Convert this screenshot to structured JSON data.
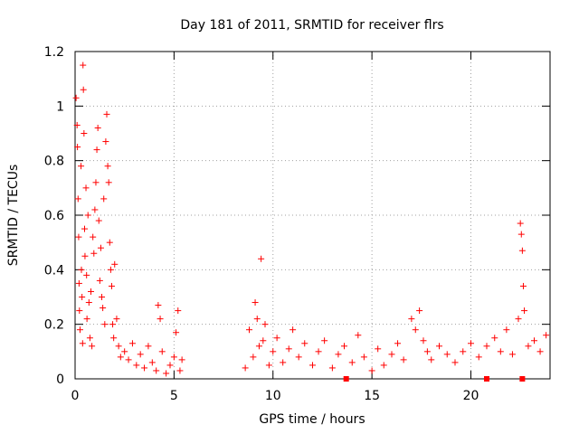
{
  "chart_data": {
    "type": "scatter",
    "title": "Day 181 of 2011, SRMTID for receiver flrs",
    "xlabel": "GPS time / hours",
    "ylabel": "SRMTID / TECUs",
    "xlim": [
      0,
      24
    ],
    "ylim": [
      0,
      1.2
    ],
    "x_ticks": [
      0,
      5,
      10,
      15,
      20
    ],
    "x_tick_labels": [
      "0",
      "5",
      "10",
      "15",
      "20"
    ],
    "y_ticks": [
      0,
      0.2,
      0.4,
      0.6,
      0.8,
      1,
      1.2
    ],
    "y_tick_labels": [
      "0",
      "0.2",
      "0.4",
      "0.6",
      "0.8",
      "1",
      "1.2"
    ],
    "grid": true,
    "marker": "+",
    "color": "#ff0000",
    "series": [
      {
        "name": "SRMTID",
        "points": [
          [
            0.05,
            1.03
          ],
          [
            0.1,
            0.93
          ],
          [
            0.12,
            0.85
          ],
          [
            0.15,
            0.66
          ],
          [
            0.18,
            0.52
          ],
          [
            0.2,
            0.35
          ],
          [
            0.22,
            0.25
          ],
          [
            0.25,
            0.18
          ],
          [
            0.3,
            0.78
          ],
          [
            0.32,
            0.4
          ],
          [
            0.35,
            0.3
          ],
          [
            0.38,
            0.13
          ],
          [
            0.4,
            1.15
          ],
          [
            0.42,
            1.06
          ],
          [
            0.45,
            0.9
          ],
          [
            0.48,
            0.55
          ],
          [
            0.5,
            0.45
          ],
          [
            0.55,
            0.7
          ],
          [
            0.58,
            0.38
          ],
          [
            0.6,
            0.22
          ],
          [
            0.65,
            0.6
          ],
          [
            0.7,
            0.28
          ],
          [
            0.75,
            0.15
          ],
          [
            0.8,
            0.32
          ],
          [
            0.85,
            0.12
          ],
          [
            0.9,
            0.52
          ],
          [
            0.95,
            0.46
          ],
          [
            1.0,
            0.62
          ],
          [
            1.05,
            0.72
          ],
          [
            1.1,
            0.84
          ],
          [
            1.15,
            0.92
          ],
          [
            1.2,
            0.58
          ],
          [
            1.25,
            0.36
          ],
          [
            1.3,
            0.48
          ],
          [
            1.35,
            0.3
          ],
          [
            1.4,
            0.26
          ],
          [
            1.45,
            0.66
          ],
          [
            1.5,
            0.2
          ],
          [
            1.55,
            0.87
          ],
          [
            1.6,
            0.97
          ],
          [
            1.65,
            0.78
          ],
          [
            1.7,
            0.72
          ],
          [
            1.75,
            0.5
          ],
          [
            1.8,
            0.4
          ],
          [
            1.85,
            0.34
          ],
          [
            1.9,
            0.2
          ],
          [
            1.95,
            0.15
          ],
          [
            2.0,
            0.42
          ],
          [
            2.1,
            0.22
          ],
          [
            2.2,
            0.12
          ],
          [
            2.3,
            0.08
          ],
          [
            2.5,
            0.1
          ],
          [
            2.7,
            0.07
          ],
          [
            2.9,
            0.13
          ],
          [
            3.1,
            0.05
          ],
          [
            3.3,
            0.09
          ],
          [
            3.5,
            0.04
          ],
          [
            3.7,
            0.12
          ],
          [
            3.9,
            0.06
          ],
          [
            4.1,
            0.03
          ],
          [
            4.2,
            0.27
          ],
          [
            4.3,
            0.22
          ],
          [
            4.4,
            0.1
          ],
          [
            4.6,
            0.02
          ],
          [
            4.8,
            0.05
          ],
          [
            5.0,
            0.08
          ],
          [
            5.1,
            0.17
          ],
          [
            5.2,
            0.25
          ],
          [
            5.3,
            0.03
          ],
          [
            5.4,
            0.07
          ],
          [
            8.6,
            0.04
          ],
          [
            8.8,
            0.18
          ],
          [
            9.0,
            0.08
          ],
          [
            9.1,
            0.28
          ],
          [
            9.2,
            0.22
          ],
          [
            9.3,
            0.12
          ],
          [
            9.4,
            0.44
          ],
          [
            9.5,
            0.14
          ],
          [
            9.6,
            0.2
          ],
          [
            9.8,
            0.05
          ],
          [
            10.0,
            0.1
          ],
          [
            10.2,
            0.15
          ],
          [
            10.5,
            0.06
          ],
          [
            10.8,
            0.11
          ],
          [
            11.0,
            0.18
          ],
          [
            11.3,
            0.08
          ],
          [
            11.6,
            0.13
          ],
          [
            12.0,
            0.05
          ],
          [
            12.3,
            0.1
          ],
          [
            12.6,
            0.14
          ],
          [
            13.0,
            0.04
          ],
          [
            13.3,
            0.09
          ],
          [
            13.6,
            0.12
          ],
          [
            14.0,
            0.06
          ],
          [
            14.3,
            0.16
          ],
          [
            14.6,
            0.08
          ],
          [
            15.0,
            0.03
          ],
          [
            15.3,
            0.11
          ],
          [
            15.6,
            0.05
          ],
          [
            16.0,
            0.09
          ],
          [
            16.3,
            0.13
          ],
          [
            16.6,
            0.07
          ],
          [
            17.0,
            0.22
          ],
          [
            17.2,
            0.18
          ],
          [
            17.4,
            0.25
          ],
          [
            17.6,
            0.14
          ],
          [
            17.8,
            0.1
          ],
          [
            18.0,
            0.07
          ],
          [
            18.4,
            0.12
          ],
          [
            18.8,
            0.09
          ],
          [
            19.2,
            0.06
          ],
          [
            19.6,
            0.1
          ],
          [
            20.0,
            0.13
          ],
          [
            20.4,
            0.08
          ],
          [
            20.8,
            0.12
          ],
          [
            21.2,
            0.15
          ],
          [
            21.5,
            0.1
          ],
          [
            21.8,
            0.18
          ],
          [
            22.1,
            0.09
          ],
          [
            22.4,
            0.22
          ],
          [
            22.5,
            0.57
          ],
          [
            22.55,
            0.53
          ],
          [
            22.6,
            0.47
          ],
          [
            22.65,
            0.34
          ],
          [
            22.7,
            0.25
          ],
          [
            22.9,
            0.12
          ],
          [
            23.2,
            0.14
          ],
          [
            23.5,
            0.1
          ],
          [
            23.8,
            0.16
          ]
        ]
      }
    ],
    "zero_markers": [
      13.7,
      20.8,
      22.6
    ]
  }
}
